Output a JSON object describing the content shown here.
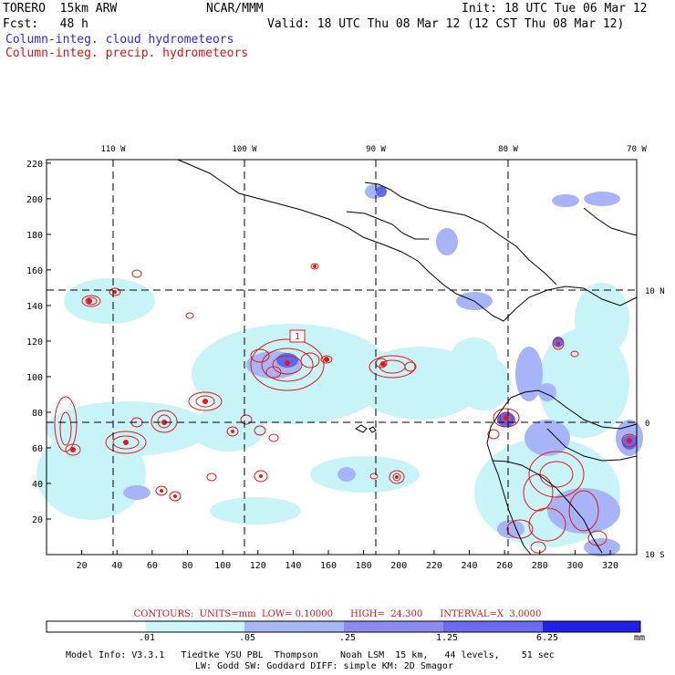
{
  "header": {
    "model": "TORERO  15km ARW",
    "org": "NCAR/MMM",
    "init": "Init: 18 UTC Tue 06 Mar 12",
    "fcst": "Fcst:   48 h",
    "valid": "Valid: 18 UTC Thu 08 Mar 12 (12 CST Thu 08 Mar 12)",
    "cloud_legend": "Column-integ. cloud hydrometeors",
    "precip_legend": "Column-integ. precip. hydrometeors"
  },
  "map": {
    "top_lon_labels": [
      "110 W",
      "100 W",
      "90 W",
      "80 W",
      "70 W"
    ],
    "right_lat_labels": [
      "10 N",
      "0",
      "10 S"
    ],
    "x_ticks": [
      "20",
      "40",
      "60",
      "80",
      "100",
      "120",
      "140",
      "160",
      "180",
      "200",
      "220",
      "240",
      "260",
      "280",
      "300",
      "320"
    ],
    "y_ticks": [
      "20",
      "40",
      "60",
      "80",
      "100",
      "120",
      "140",
      "160",
      "180",
      "200",
      "220"
    ],
    "contour_label": "1",
    "colors": {
      "cloud_light": "#c8f4f8",
      "cloud_mid": "#a8b4f8",
      "cloud_dark": "#6068f0",
      "precip": "#e01818",
      "coast": "#000000"
    }
  },
  "footer": {
    "contours": "CONTOURS:  UNITS=mm  LOW= 0.10000      HIGH=  24.300      INTERVAL=X  3.0000",
    "colorbar_labels": [
      ".01",
      ".05",
      ".25",
      "1.25",
      "6.25"
    ],
    "colorbar_unit": "mm",
    "colorbar_colors": [
      "#ffffff",
      "#ccf6fa",
      "#a8b8f4",
      "#8c8cf0",
      "#6c6cf0",
      "#2020e6"
    ],
    "info_line1": "Model Info: V3.3.1   Tiedtke YSU PBL  Thompson    Noah LSM  15 km,   44 levels,    51 sec",
    "info_line2": "LW: Godd SW: Goddard DIFF: simple KM: 2D Smagor"
  }
}
